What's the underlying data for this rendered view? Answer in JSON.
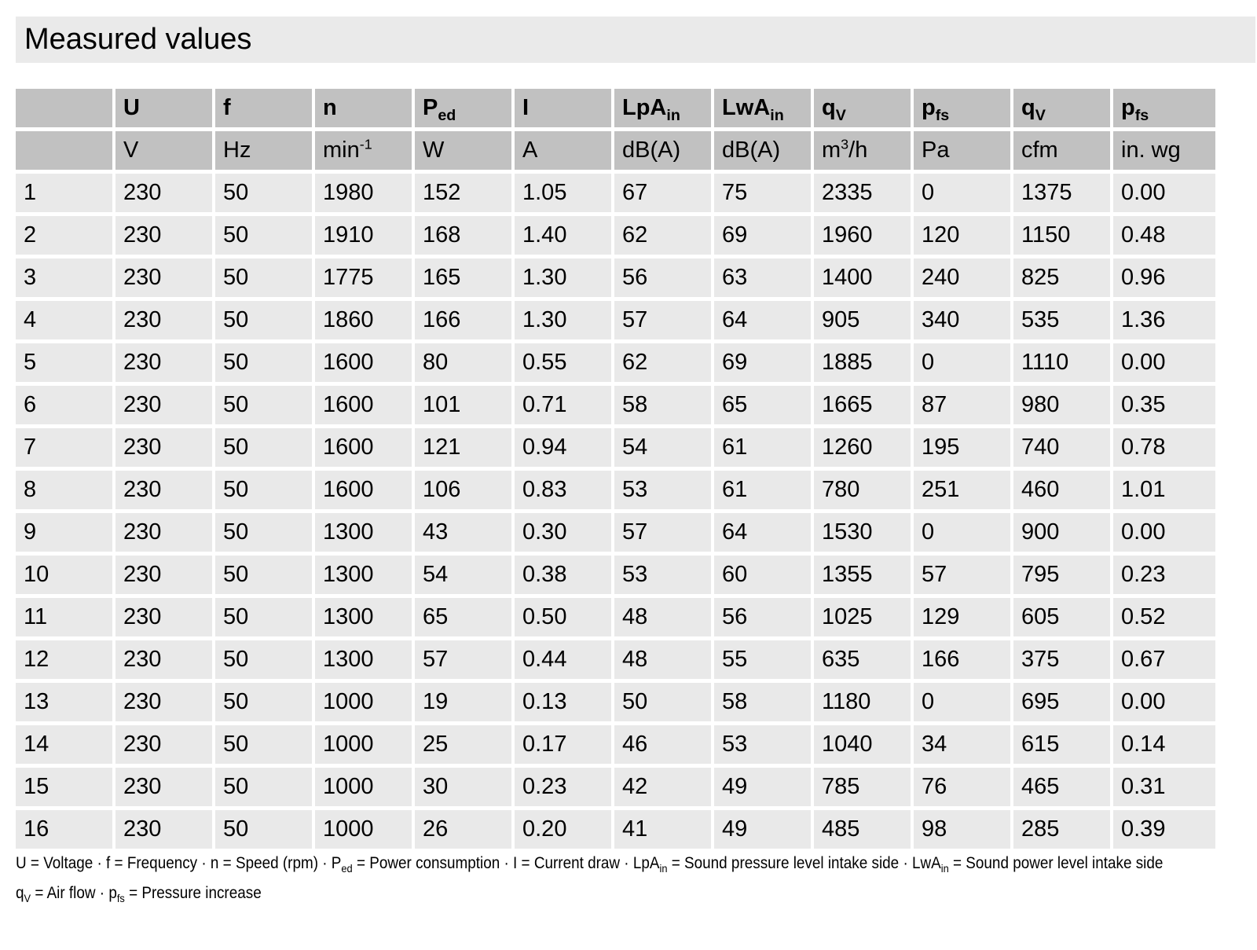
{
  "title": "Measured values",
  "colors": {
    "title_bg": "#eaeaea",
    "header_bg": "#c1c1c1",
    "row_bg": "#e9e9e9",
    "text": "#000000"
  },
  "table": {
    "columns": [
      {
        "head": "",
        "head_sub": "",
        "unit": "",
        "unit_sup": "",
        "unit_post": ""
      },
      {
        "head": "U",
        "head_sub": "",
        "unit": "V",
        "unit_sup": "",
        "unit_post": ""
      },
      {
        "head": "f",
        "head_sub": "",
        "unit": "Hz",
        "unit_sup": "",
        "unit_post": ""
      },
      {
        "head": "n",
        "head_sub": "",
        "unit": "min",
        "unit_sup": "-1",
        "unit_post": ""
      },
      {
        "head": "P",
        "head_sub": "ed",
        "unit": "W",
        "unit_sup": "",
        "unit_post": ""
      },
      {
        "head": "I",
        "head_sub": "",
        "unit": "A",
        "unit_sup": "",
        "unit_post": ""
      },
      {
        "head": "LpA",
        "head_sub": "in",
        "unit": "dB(A)",
        "unit_sup": "",
        "unit_post": ""
      },
      {
        "head": "LwA",
        "head_sub": "in",
        "unit": "dB(A)",
        "unit_sup": "",
        "unit_post": ""
      },
      {
        "head": "q",
        "head_sub": "V",
        "unit": "m",
        "unit_sup": "3",
        "unit_post": "/h"
      },
      {
        "head": "p",
        "head_sub": "fs",
        "unit": "Pa",
        "unit_sup": "",
        "unit_post": ""
      },
      {
        "head": "q",
        "head_sub": "V",
        "unit": "cfm",
        "unit_sup": "",
        "unit_post": ""
      },
      {
        "head": "p",
        "head_sub": "fs",
        "unit": "in. wg",
        "unit_sup": "",
        "unit_post": ""
      }
    ],
    "rows": [
      [
        "1",
        "230",
        "50",
        "1980",
        "152",
        "1.05",
        "67",
        "75",
        "2335",
        "0",
        "1375",
        "0.00"
      ],
      [
        "2",
        "230",
        "50",
        "1910",
        "168",
        "1.40",
        "62",
        "69",
        "1960",
        "120",
        "1150",
        "0.48"
      ],
      [
        "3",
        "230",
        "50",
        "1775",
        "165",
        "1.30",
        "56",
        "63",
        "1400",
        "240",
        "825",
        "0.96"
      ],
      [
        "4",
        "230",
        "50",
        "1860",
        "166",
        "1.30",
        "57",
        "64",
        "905",
        "340",
        "535",
        "1.36"
      ],
      [
        "5",
        "230",
        "50",
        "1600",
        "80",
        "0.55",
        "62",
        "69",
        "1885",
        "0",
        "1110",
        "0.00"
      ],
      [
        "6",
        "230",
        "50",
        "1600",
        "101",
        "0.71",
        "58",
        "65",
        "1665",
        "87",
        "980",
        "0.35"
      ],
      [
        "7",
        "230",
        "50",
        "1600",
        "121",
        "0.94",
        "54",
        "61",
        "1260",
        "195",
        "740",
        "0.78"
      ],
      [
        "8",
        "230",
        "50",
        "1600",
        "106",
        "0.83",
        "53",
        "61",
        "780",
        "251",
        "460",
        "1.01"
      ],
      [
        "9",
        "230",
        "50",
        "1300",
        "43",
        "0.30",
        "57",
        "64",
        "1530",
        "0",
        "900",
        "0.00"
      ],
      [
        "10",
        "230",
        "50",
        "1300",
        "54",
        "0.38",
        "53",
        "60",
        "1355",
        "57",
        "795",
        "0.23"
      ],
      [
        "11",
        "230",
        "50",
        "1300",
        "65",
        "0.50",
        "48",
        "56",
        "1025",
        "129",
        "605",
        "0.52"
      ],
      [
        "12",
        "230",
        "50",
        "1300",
        "57",
        "0.44",
        "48",
        "55",
        "635",
        "166",
        "375",
        "0.67"
      ],
      [
        "13",
        "230",
        "50",
        "1000",
        "19",
        "0.13",
        "50",
        "58",
        "1180",
        "0",
        "695",
        "0.00"
      ],
      [
        "14",
        "230",
        "50",
        "1000",
        "25",
        "0.17",
        "46",
        "53",
        "1040",
        "34",
        "615",
        "0.14"
      ],
      [
        "15",
        "230",
        "50",
        "1000",
        "30",
        "0.23",
        "42",
        "49",
        "785",
        "76",
        "465",
        "0.31"
      ],
      [
        "16",
        "230",
        "50",
        "1000",
        "26",
        "0.20",
        "41",
        "49",
        "485",
        "98",
        "285",
        "0.39"
      ]
    ]
  },
  "legend": {
    "lines": [
      [
        {
          "t": "U = Voltage · f = Frequency · n = Speed (rpm) · P"
        },
        {
          "t": "ed",
          "sub": true
        },
        {
          "t": " = Power consumption · I = Current draw · LpA"
        },
        {
          "t": "in",
          "sub": true
        },
        {
          "t": " = Sound pressure level intake side · LwA"
        },
        {
          "t": "in",
          "sub": true
        },
        {
          "t": " = Sound power level intake side"
        }
      ],
      [
        {
          "t": "q"
        },
        {
          "t": "V",
          "sub": true
        },
        {
          "t": " = Air flow · p"
        },
        {
          "t": "fs",
          "sub": true
        },
        {
          "t": " = Pressure increase"
        }
      ]
    ]
  }
}
